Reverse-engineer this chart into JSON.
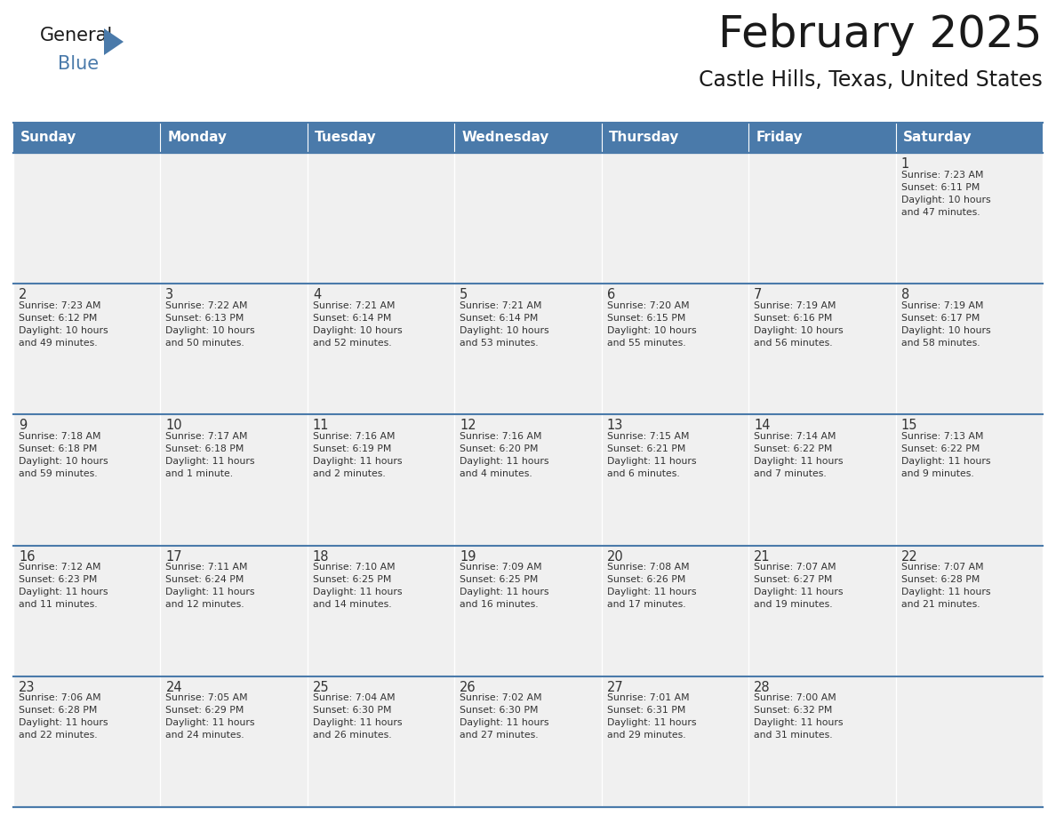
{
  "title": "February 2025",
  "subtitle": "Castle Hills, Texas, United States",
  "header_color": "#4a7aaa",
  "header_text_color": "#ffffff",
  "cell_bg_color": "#f0f0f0",
  "day_headers": [
    "Sunday",
    "Monday",
    "Tuesday",
    "Wednesday",
    "Thursday",
    "Friday",
    "Saturday"
  ],
  "title_color": "#1a1a1a",
  "subtitle_color": "#1a1a1a",
  "line_color": "#4a7aaa",
  "cell_text_color": "#333333",
  "days": [
    {
      "day": 1,
      "col": 6,
      "row": 0,
      "sunrise": "7:23 AM",
      "sunset": "6:11 PM",
      "daylight": "10 hours and 47 minutes."
    },
    {
      "day": 2,
      "col": 0,
      "row": 1,
      "sunrise": "7:23 AM",
      "sunset": "6:12 PM",
      "daylight": "10 hours and 49 minutes."
    },
    {
      "day": 3,
      "col": 1,
      "row": 1,
      "sunrise": "7:22 AM",
      "sunset": "6:13 PM",
      "daylight": "10 hours and 50 minutes."
    },
    {
      "day": 4,
      "col": 2,
      "row": 1,
      "sunrise": "7:21 AM",
      "sunset": "6:14 PM",
      "daylight": "10 hours and 52 minutes."
    },
    {
      "day": 5,
      "col": 3,
      "row": 1,
      "sunrise": "7:21 AM",
      "sunset": "6:14 PM",
      "daylight": "10 hours and 53 minutes."
    },
    {
      "day": 6,
      "col": 4,
      "row": 1,
      "sunrise": "7:20 AM",
      "sunset": "6:15 PM",
      "daylight": "10 hours and 55 minutes."
    },
    {
      "day": 7,
      "col": 5,
      "row": 1,
      "sunrise": "7:19 AM",
      "sunset": "6:16 PM",
      "daylight": "10 hours and 56 minutes."
    },
    {
      "day": 8,
      "col": 6,
      "row": 1,
      "sunrise": "7:19 AM",
      "sunset": "6:17 PM",
      "daylight": "10 hours and 58 minutes."
    },
    {
      "day": 9,
      "col": 0,
      "row": 2,
      "sunrise": "7:18 AM",
      "sunset": "6:18 PM",
      "daylight": "10 hours and 59 minutes."
    },
    {
      "day": 10,
      "col": 1,
      "row": 2,
      "sunrise": "7:17 AM",
      "sunset": "6:18 PM",
      "daylight": "11 hours and 1 minute."
    },
    {
      "day": 11,
      "col": 2,
      "row": 2,
      "sunrise": "7:16 AM",
      "sunset": "6:19 PM",
      "daylight": "11 hours and 2 minutes."
    },
    {
      "day": 12,
      "col": 3,
      "row": 2,
      "sunrise": "7:16 AM",
      "sunset": "6:20 PM",
      "daylight": "11 hours and 4 minutes."
    },
    {
      "day": 13,
      "col": 4,
      "row": 2,
      "sunrise": "7:15 AM",
      "sunset": "6:21 PM",
      "daylight": "11 hours and 6 minutes."
    },
    {
      "day": 14,
      "col": 5,
      "row": 2,
      "sunrise": "7:14 AM",
      "sunset": "6:22 PM",
      "daylight": "11 hours and 7 minutes."
    },
    {
      "day": 15,
      "col": 6,
      "row": 2,
      "sunrise": "7:13 AM",
      "sunset": "6:22 PM",
      "daylight": "11 hours and 9 minutes."
    },
    {
      "day": 16,
      "col": 0,
      "row": 3,
      "sunrise": "7:12 AM",
      "sunset": "6:23 PM",
      "daylight": "11 hours and 11 minutes."
    },
    {
      "day": 17,
      "col": 1,
      "row": 3,
      "sunrise": "7:11 AM",
      "sunset": "6:24 PM",
      "daylight": "11 hours and 12 minutes."
    },
    {
      "day": 18,
      "col": 2,
      "row": 3,
      "sunrise": "7:10 AM",
      "sunset": "6:25 PM",
      "daylight": "11 hours and 14 minutes."
    },
    {
      "day": 19,
      "col": 3,
      "row": 3,
      "sunrise": "7:09 AM",
      "sunset": "6:25 PM",
      "daylight": "11 hours and 16 minutes."
    },
    {
      "day": 20,
      "col": 4,
      "row": 3,
      "sunrise": "7:08 AM",
      "sunset": "6:26 PM",
      "daylight": "11 hours and 17 minutes."
    },
    {
      "day": 21,
      "col": 5,
      "row": 3,
      "sunrise": "7:07 AM",
      "sunset": "6:27 PM",
      "daylight": "11 hours and 19 minutes."
    },
    {
      "day": 22,
      "col": 6,
      "row": 3,
      "sunrise": "7:07 AM",
      "sunset": "6:28 PM",
      "daylight": "11 hours and 21 minutes."
    },
    {
      "day": 23,
      "col": 0,
      "row": 4,
      "sunrise": "7:06 AM",
      "sunset": "6:28 PM",
      "daylight": "11 hours and 22 minutes."
    },
    {
      "day": 24,
      "col": 1,
      "row": 4,
      "sunrise": "7:05 AM",
      "sunset": "6:29 PM",
      "daylight": "11 hours and 24 minutes."
    },
    {
      "day": 25,
      "col": 2,
      "row": 4,
      "sunrise": "7:04 AM",
      "sunset": "6:30 PM",
      "daylight": "11 hours and 26 minutes."
    },
    {
      "day": 26,
      "col": 3,
      "row": 4,
      "sunrise": "7:02 AM",
      "sunset": "6:30 PM",
      "daylight": "11 hours and 27 minutes."
    },
    {
      "day": 27,
      "col": 4,
      "row": 4,
      "sunrise": "7:01 AM",
      "sunset": "6:31 PM",
      "daylight": "11 hours and 29 minutes."
    },
    {
      "day": 28,
      "col": 5,
      "row": 4,
      "sunrise": "7:00 AM",
      "sunset": "6:32 PM",
      "daylight": "11 hours and 31 minutes."
    }
  ]
}
